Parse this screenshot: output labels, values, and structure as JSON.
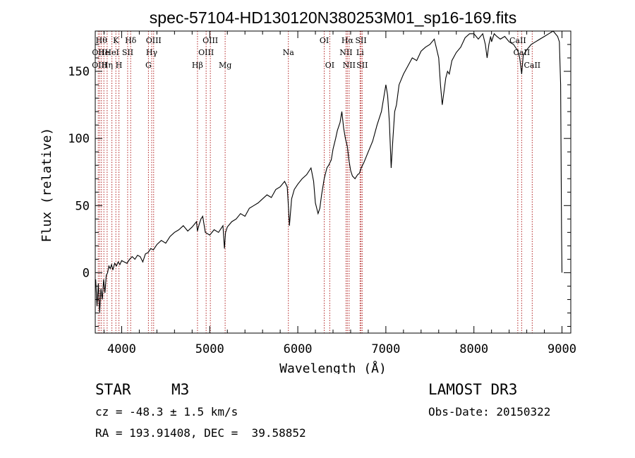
{
  "chart_data": {
    "type": "line",
    "title": "spec-57104-HD130120N380253M01_sp16-169.fits",
    "xlabel": "Wavelength (Å)",
    "ylabel": "Flux (relative)",
    "xlim": [
      3700,
      9100
    ],
    "ylim": [
      -45,
      180
    ],
    "xticks": [
      4000,
      5000,
      6000,
      7000,
      8000,
      9000
    ],
    "yticks": [
      0,
      50,
      100,
      150
    ],
    "x_minor_step": 200,
    "y_minor_step": 10,
    "grid": false,
    "series": [
      {
        "name": "spectrum",
        "x": [
          3705,
          3720,
          3735,
          3750,
          3765,
          3780,
          3795,
          3810,
          3825,
          3840,
          3855,
          3870,
          3885,
          3900,
          3920,
          3940,
          3960,
          3980,
          4000,
          4030,
          4060,
          4090,
          4120,
          4150,
          4180,
          4210,
          4240,
          4270,
          4300,
          4330,
          4360,
          4400,
          4450,
          4500,
          4550,
          4600,
          4650,
          4700,
          4750,
          4800,
          4850,
          4860,
          4880,
          4900,
          4920,
          4950,
          5000,
          5050,
          5100,
          5150,
          5167,
          5180,
          5200,
          5250,
          5300,
          5350,
          5400,
          5450,
          5500,
          5550,
          5600,
          5650,
          5700,
          5750,
          5800,
          5850,
          5880,
          5893,
          5905,
          5930,
          5960,
          6000,
          6050,
          6100,
          6150,
          6180,
          6200,
          6230,
          6250,
          6270,
          6300,
          6330,
          6350,
          6380,
          6400,
          6430,
          6450,
          6480,
          6500,
          6520,
          6540,
          6563,
          6580,
          6600,
          6620,
          6650,
          6680,
          6700,
          6720,
          6750,
          6800,
          6850,
          6900,
          6950,
          7000,
          7020,
          7040,
          7060,
          7080,
          7100,
          7120,
          7150,
          7200,
          7250,
          7300,
          7350,
          7400,
          7450,
          7500,
          7550,
          7600,
          7620,
          7640,
          7660,
          7680,
          7700,
          7720,
          7750,
          7800,
          7850,
          7900,
          7950,
          8000,
          8050,
          8100,
          8130,
          8150,
          8170,
          8190,
          8200,
          8230,
          8260,
          8300,
          8350,
          8400,
          8450,
          8500,
          8520,
          8542,
          8560,
          8600,
          8650,
          8700,
          8750,
          8800,
          8850,
          8900,
          8950,
          8970,
          8985,
          8995,
          9000
        ],
        "y": [
          -5,
          -25,
          -8,
          -30,
          -12,
          -20,
          -5,
          -15,
          -2,
          0,
          5,
          3,
          6,
          2,
          7,
          5,
          8,
          6,
          9,
          8,
          7,
          10,
          12,
          10,
          13,
          12,
          8,
          14,
          15,
          18,
          17,
          21,
          24,
          22,
          27,
          30,
          32,
          35,
          31,
          34,
          38,
          31,
          36,
          40,
          42,
          30,
          28,
          32,
          30,
          35,
          18,
          30,
          34,
          38,
          40,
          44,
          42,
          48,
          50,
          52,
          55,
          58,
          56,
          62,
          64,
          68,
          64,
          50,
          35,
          55,
          62,
          66,
          70,
          73,
          78,
          68,
          52,
          44,
          48,
          58,
          70,
          78,
          80,
          84,
          92,
          100,
          106,
          112,
          120,
          108,
          100,
          94,
          84,
          76,
          72,
          70,
          73,
          74,
          78,
          82,
          90,
          98,
          110,
          120,
          140,
          132,
          112,
          78,
          100,
          120,
          125,
          140,
          148,
          154,
          160,
          158,
          165,
          168,
          170,
          174,
          160,
          140,
          125,
          135,
          145,
          150,
          148,
          158,
          164,
          168,
          175,
          178,
          178,
          174,
          178,
          170,
          160,
          170,
          176,
          172,
          178,
          176,
          174,
          176,
          172,
          170,
          165,
          160,
          148,
          162,
          166,
          170,
          172,
          174,
          176,
          178,
          180,
          176,
          172,
          140,
          30,
          0
        ]
      }
    ],
    "lines": [
      {
        "x": 3734,
        "label": "OII",
        "row": 2
      },
      {
        "x": 3750,
        "label": "OIII",
        "row": 3
      },
      {
        "x": 3770,
        "label": "Hθ",
        "row": 1
      },
      {
        "x": 3798,
        "label": "He",
        "row": 2
      },
      {
        "x": 3835,
        "label": "Hη",
        "row": 3
      },
      {
        "x": 3889,
        "label": "HeI",
        "row": 2
      },
      {
        "x": 3934,
        "label": "K",
        "row": 1
      },
      {
        "x": 3969,
        "label": "H",
        "row": 3
      },
      {
        "x": 4068,
        "label": "SII",
        "row": 2
      },
      {
        "x": 4102,
        "label": "Hδ",
        "row": 1
      },
      {
        "x": 4304,
        "label": "G",
        "row": 3
      },
      {
        "x": 4341,
        "label": "Hγ",
        "row": 2
      },
      {
        "x": 4363,
        "label": "OIII",
        "row": 1
      },
      {
        "x": 4861,
        "label": "Hβ",
        "row": 3
      },
      {
        "x": 4959,
        "label": "OIII",
        "row": 2
      },
      {
        "x": 5007,
        "label": "OIII",
        "row": 1
      },
      {
        "x": 5175,
        "label": "Mg",
        "row": 3
      },
      {
        "x": 5893,
        "label": "Na",
        "row": 2
      },
      {
        "x": 6300,
        "label": "OI",
        "row": 1
      },
      {
        "x": 6363,
        "label": "OI",
        "row": 3
      },
      {
        "x": 6548,
        "label": "NII",
        "row": 2
      },
      {
        "x": 6563,
        "label": "Hα",
        "row": 1
      },
      {
        "x": 6583,
        "label": "NII",
        "row": 3
      },
      {
        "x": 6707,
        "label": "Li",
        "row": 2
      },
      {
        "x": 6717,
        "label": "SII",
        "row": 1
      },
      {
        "x": 6731,
        "label": "SII",
        "row": 3
      },
      {
        "x": 8498,
        "label": "CaII",
        "row": 1
      },
      {
        "x": 8542,
        "label": "CaII",
        "row": 2
      },
      {
        "x": 8662,
        "label": "CaII",
        "row": 3
      }
    ]
  },
  "info": {
    "object_type": "STAR",
    "subclass": "M3",
    "survey": "LAMOST DR3",
    "cz": "cz = -48.3 ± 1.5 km/s",
    "obs_date": "Obs-Date: 20150322",
    "coords": "RA = 193.91408, DEC =  39.58852"
  },
  "colors": {
    "axis": "#000000",
    "spectrum": "#000000",
    "line_marker": "#b22222"
  }
}
